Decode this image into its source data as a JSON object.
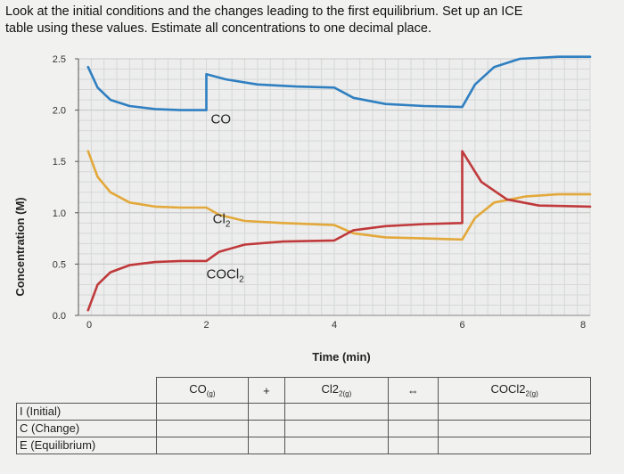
{
  "question": {
    "line1": "Look at the initial conditions and the changes leading to the first equilibrium.  Set up an ICE",
    "line2": "table using these values.  Estimate all concentrations to one decimal place."
  },
  "chart_data": {
    "type": "line",
    "title": "",
    "xlabel": "Time (min)",
    "ylabel": "Concentration (M)",
    "xlim": [
      0,
      8
    ],
    "ylim": [
      0,
      2.5
    ],
    "x_ticks": [
      "0",
      "2",
      "4",
      "6",
      "8"
    ],
    "y_ticks": [
      "0.0",
      "0.5",
      "1.0",
      "1.5",
      "2.0",
      "2.5"
    ],
    "grid": true,
    "series": [
      {
        "name": "CO",
        "label_main": "CO",
        "label_sub": "",
        "color": "#2f7fc1",
        "points": [
          [
            0.15,
            2.42
          ],
          [
            0.3,
            2.22
          ],
          [
            0.5,
            2.1
          ],
          [
            0.8,
            2.04
          ],
          [
            1.2,
            2.01
          ],
          [
            1.6,
            2.0
          ],
          [
            2.0,
            2.0
          ],
          [
            2.0,
            2.35
          ],
          [
            2.3,
            2.3
          ],
          [
            2.8,
            2.25
          ],
          [
            3.4,
            2.23
          ],
          [
            4.0,
            2.22
          ],
          [
            4.0,
            2.22
          ],
          [
            4.3,
            2.12
          ],
          [
            4.8,
            2.06
          ],
          [
            5.4,
            2.04
          ],
          [
            6.0,
            2.03
          ],
          [
            6.0,
            2.03
          ],
          [
            6.2,
            2.25
          ],
          [
            6.5,
            2.42
          ],
          [
            6.9,
            2.5
          ],
          [
            7.5,
            2.52
          ],
          [
            8.0,
            2.52
          ]
        ]
      },
      {
        "name": "Cl2",
        "label_main": "Cl",
        "label_sub": "2",
        "color": "#e3a83a",
        "points": [
          [
            0.15,
            1.6
          ],
          [
            0.3,
            1.35
          ],
          [
            0.5,
            1.2
          ],
          [
            0.8,
            1.1
          ],
          [
            1.2,
            1.06
          ],
          [
            1.6,
            1.05
          ],
          [
            2.0,
            1.05
          ],
          [
            2.2,
            0.98
          ],
          [
            2.6,
            0.92
          ],
          [
            3.2,
            0.9
          ],
          [
            4.0,
            0.88
          ],
          [
            4.0,
            0.88
          ],
          [
            4.3,
            0.8
          ],
          [
            4.8,
            0.76
          ],
          [
            5.4,
            0.75
          ],
          [
            6.0,
            0.74
          ],
          [
            6.2,
            0.95
          ],
          [
            6.5,
            1.1
          ],
          [
            7.0,
            1.16
          ],
          [
            7.5,
            1.18
          ],
          [
            8.0,
            1.18
          ]
        ]
      },
      {
        "name": "COCl2",
        "label_main": "COCl",
        "label_sub": "2",
        "color": "#c0393b",
        "points": [
          [
            0.15,
            0.05
          ],
          [
            0.3,
            0.3
          ],
          [
            0.5,
            0.42
          ],
          [
            0.8,
            0.49
          ],
          [
            1.2,
            0.52
          ],
          [
            1.6,
            0.53
          ],
          [
            2.0,
            0.53
          ],
          [
            2.0,
            0.53
          ],
          [
            2.2,
            0.62
          ],
          [
            2.6,
            0.69
          ],
          [
            3.2,
            0.72
          ],
          [
            4.0,
            0.73
          ],
          [
            4.3,
            0.83
          ],
          [
            4.8,
            0.87
          ],
          [
            5.4,
            0.89
          ],
          [
            6.0,
            0.9
          ],
          [
            6.0,
            1.6
          ],
          [
            6.3,
            1.3
          ],
          [
            6.7,
            1.13
          ],
          [
            7.2,
            1.07
          ],
          [
            8.0,
            1.06
          ]
        ]
      }
    ]
  },
  "ice_table": {
    "species": [
      "CO",
      "+",
      "Cl2",
      "⇔",
      "COCl2"
    ],
    "species_sub": [
      "(g)",
      "",
      "2(g)",
      "",
      "2(g)"
    ],
    "rows": [
      "I (Initial)",
      "C (Change)",
      "E (Equilibrium)"
    ]
  }
}
